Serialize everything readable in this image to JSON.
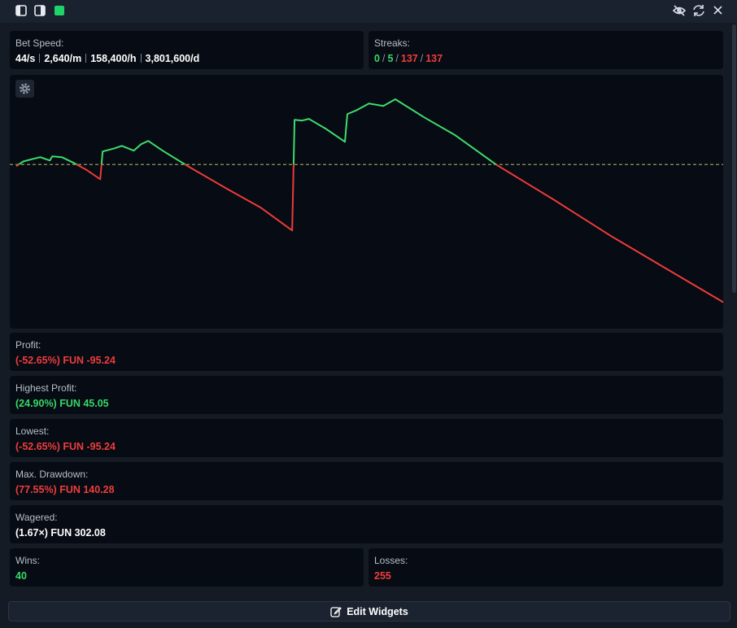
{
  "bet_speed": {
    "label": "Bet Speed:",
    "values": [
      "44/s",
      "2,640/m",
      "158,400/h",
      "3,801,600/d"
    ]
  },
  "streaks": {
    "label": "Streaks:",
    "win": [
      "0",
      "5"
    ],
    "loss": [
      "137",
      "137"
    ],
    "separator": "/"
  },
  "chart_data": {
    "type": "line",
    "x": [
      0,
      3,
      7,
      10,
      14,
      15,
      19,
      24,
      29,
      35,
      36,
      41,
      44,
      49,
      52,
      55,
      61,
      71,
      88,
      102,
      115,
      116,
      119,
      122,
      129,
      137,
      138,
      142,
      147,
      153,
      158,
      170,
      183,
      200,
      224,
      248,
      271,
      295
    ],
    "values": [
      -1.1,
      2.2,
      3.9,
      5.1,
      2.8,
      5.6,
      5.1,
      1.1,
      -3.4,
      -10.1,
      9.0,
      11.2,
      12.9,
      9.6,
      14.0,
      16.3,
      9.6,
      -0.6,
      -16.9,
      -29.8,
      -45.5,
      30.9,
      30.3,
      31.5,
      24.7,
      15.7,
      34.8,
      37.6,
      42.1,
      40.4,
      45.05,
      32.6,
      20.2,
      0,
      -24.2,
      -49.4,
      -71.9,
      -95.24
    ],
    "colors": {
      "positive": "#3ddc6e",
      "negative": "#ec3b3b"
    }
  },
  "stats": {
    "profit": {
      "label": "Profit:",
      "value": "(-52.65%) FUN -95.24"
    },
    "highest": {
      "label": "Highest Profit:",
      "value": "(24.90%) FUN 45.05"
    },
    "lowest": {
      "label": "Lowest:",
      "value": "(-52.65%) FUN -95.24"
    },
    "drawdown": {
      "label": "Max. Drawdown:",
      "value": "(77.55%) FUN 140.28"
    },
    "wagered": {
      "label": "Wagered:",
      "value": "(1.67×) FUN 302.08"
    },
    "wins": {
      "label": "Wins:",
      "value": "40"
    },
    "losses": {
      "label": "Losses:",
      "value": "255"
    }
  },
  "button": {
    "label": "Edit Widgets"
  }
}
